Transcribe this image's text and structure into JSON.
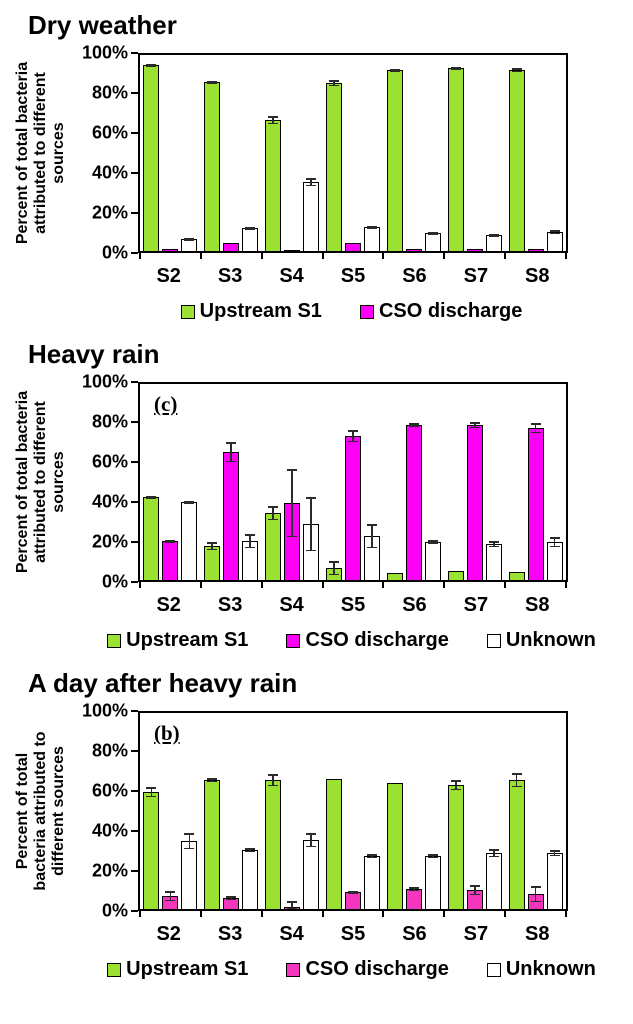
{
  "chart_data": [
    {
      "type": "bar",
      "title": "Dry weather",
      "annotation": "",
      "ylabel": "Percent of total bacteria\nattributed to different\nsources",
      "yticks": [
        "100%",
        "80%",
        "60%",
        "40%",
        "20%",
        "0%"
      ],
      "ylim": [
        0,
        100
      ],
      "grid": false,
      "legend_position": "bottom",
      "categories": [
        "S2",
        "S3",
        "S4",
        "S5",
        "S6",
        "S7",
        "S8"
      ],
      "series": [
        {
          "name": "Upstream S1",
          "color": "#9AE132",
          "values": [
            93,
            84.5,
            65.5,
            84,
            90.5,
            91.5,
            90.5
          ],
          "errors": [
            0.5,
            0.5,
            2,
            1.5,
            0.5,
            0.5,
            1
          ]
        },
        {
          "name": "CSO discharge",
          "color": "#FB00F5",
          "values": [
            1,
            4,
            0.5,
            4,
            1,
            1,
            1
          ],
          "errors": [
            0,
            0,
            0,
            0,
            0,
            0,
            0
          ]
        },
        {
          "name": "Unknown",
          "color": "#FFFFFF",
          "values": [
            6,
            11.5,
            34.5,
            12,
            9,
            8,
            9.5
          ],
          "errors": [
            0.5,
            0.5,
            2,
            0.5,
            0.5,
            0.5,
            1
          ]
        }
      ],
      "legend": [
        {
          "label": "Upstream S1",
          "color": "#9AE132"
        },
        {
          "label": "CSO discharge",
          "color": "#FB00F5"
        }
      ]
    },
    {
      "type": "bar",
      "title": "Heavy rain",
      "annotation": "(c)",
      "ylabel": "Percent of total bacteria\nattributed to different\nsources",
      "yticks": [
        "100%",
        "80%",
        "60%",
        "40%",
        "20%",
        "0%"
      ],
      "ylim": [
        0,
        100
      ],
      "grid": false,
      "legend_position": "bottom",
      "categories": [
        "S2",
        "S3",
        "S4",
        "S5",
        "S6",
        "S7",
        "S8"
      ],
      "series": [
        {
          "name": "Upstream S1",
          "color": "#9AE132",
          "values": [
            41.5,
            17,
            33.5,
            6,
            3.5,
            4.5,
            4
          ],
          "errors": [
            0.7,
            2,
            3.5,
            3.5,
            0,
            0,
            0
          ]
        },
        {
          "name": "CSO discharge",
          "color": "#FB00F5",
          "values": [
            19.5,
            64,
            38.5,
            72,
            77.5,
            77.5,
            76
          ],
          "errors": [
            0.5,
            5,
            17,
            3,
            0.8,
            1.5,
            2.5
          ]
        },
        {
          "name": "Unknown",
          "color": "#FFFFFF",
          "values": [
            39,
            19.5,
            28,
            22,
            19,
            18,
            19
          ],
          "errors": [
            0.5,
            3.5,
            13.5,
            6,
            0.8,
            1.5,
            2.5
          ]
        }
      ],
      "legend": [
        {
          "label": "Upstream S1",
          "color": "#9AE132"
        },
        {
          "label": "CSO discharge",
          "color": "#FB00F5"
        },
        {
          "label": "Unknown",
          "color": "#FFFFFF"
        }
      ]
    },
    {
      "type": "bar",
      "title": "A day after heavy rain",
      "annotation": "(b)",
      "ylabel": "Percent of total\nbacteria attributed to\ndifferent sources",
      "yticks": [
        "100%",
        "80%",
        "60%",
        "40%",
        "20%",
        "0%"
      ],
      "ylim": [
        0,
        100
      ],
      "grid": false,
      "legend_position": "bottom",
      "categories": [
        "S2",
        "S3",
        "S4",
        "S5",
        "S6",
        "S7",
        "S8"
      ],
      "series": [
        {
          "name": "Upstream S1",
          "color": "#9AE132",
          "values": [
            58.5,
            64.5,
            64.5,
            65,
            63,
            62,
            64.5
          ],
          "errors": [
            2.5,
            1,
            3,
            0,
            0,
            2.5,
            3.5
          ]
        },
        {
          "name": "CSO discharge",
          "color": "#F436BE",
          "values": [
            6.5,
            5.5,
            1,
            8.5,
            10,
            9.5,
            7.5
          ],
          "errors": [
            2.5,
            1,
            2,
            0.5,
            1,
            2.5,
            4
          ]
        },
        {
          "name": "Unknown",
          "color": "#FFFFFF",
          "values": [
            34,
            29.5,
            34.5,
            26.5,
            26.5,
            28,
            28
          ],
          "errors": [
            4,
            1,
            3.5,
            1,
            1,
            2,
            1.5
          ]
        }
      ],
      "legend": [
        {
          "label": "Upstream S1",
          "color": "#9AE132"
        },
        {
          "label": "CSO discharge",
          "color": "#F436BE"
        },
        {
          "label": "Unknown",
          "color": "#FFFFFF"
        }
      ]
    }
  ]
}
